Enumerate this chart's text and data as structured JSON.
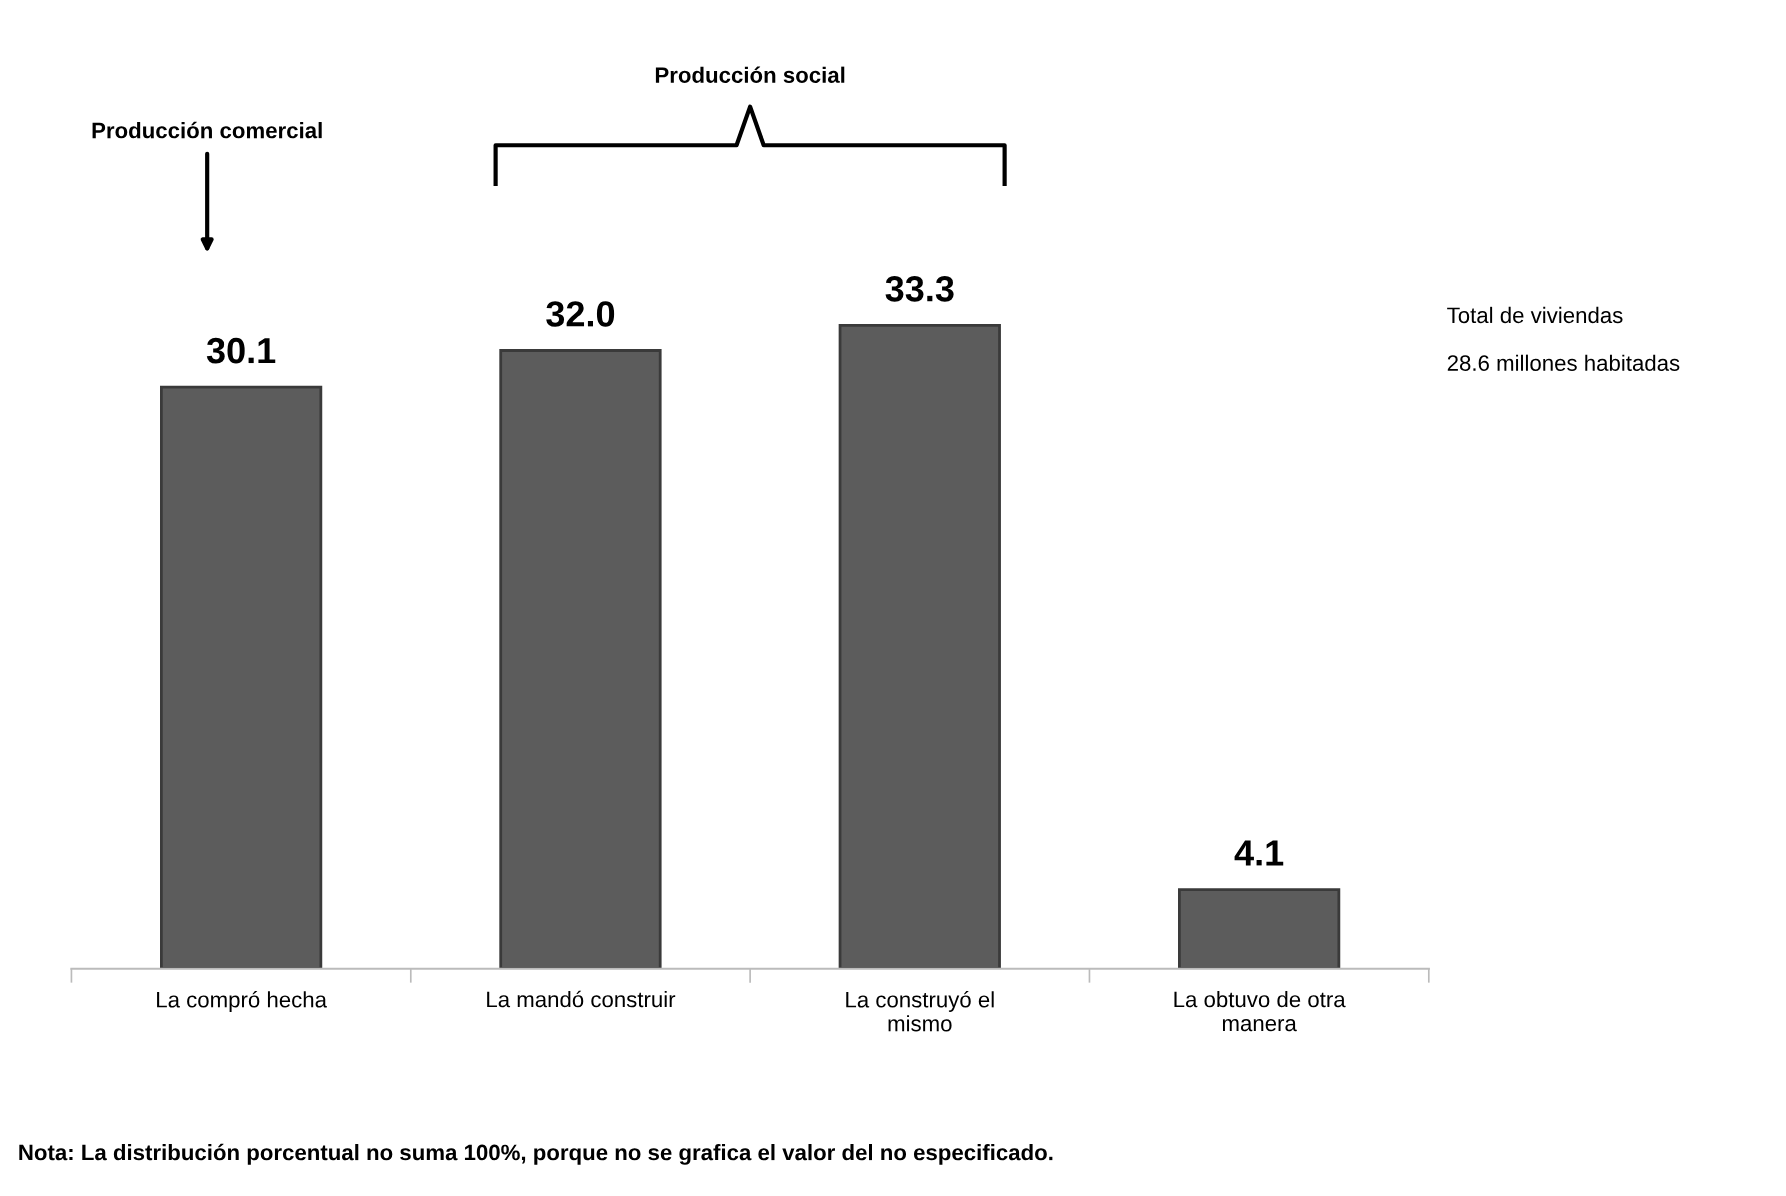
{
  "chart_data": {
    "type": "bar",
    "categories": [
      "La compró hecha",
      "La mandó construir",
      "La construyó el\nmismo",
      "La obtuvo de otra\nmanera"
    ],
    "values": [
      30.1,
      32.0,
      33.3,
      4.1
    ],
    "color": "#5c5c5c",
    "value_labels": [
      "30.1",
      "32.0",
      "33.3",
      "4.1"
    ],
    "grid": false,
    "legend": false,
    "tick_labels": "x",
    "annotations": [
      "Producción comercial",
      "Producción social",
      "Total de viviendas",
      "28.6 millones habitadas",
      "Nota: La distribución porcentual no suma 100%, porque no se grafica el valor del no especificado."
    ]
  }
}
